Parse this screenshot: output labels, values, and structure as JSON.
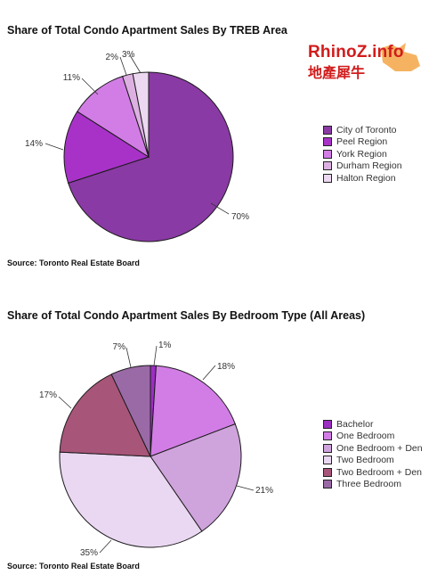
{
  "chart_data": [
    {
      "type": "pie",
      "title": "Share of Total Condo Apartment Sales By TREB Area",
      "categories": [
        "City of Toronto",
        "Peel Region",
        "York Region",
        "Durham Region",
        "Halton Region"
      ],
      "values": [
        70,
        14,
        11,
        2,
        3
      ],
      "data_labels": [
        "70%",
        "14%",
        "11%",
        "2%",
        "3%"
      ],
      "colors": [
        "#8a3aa4",
        "#a832c8",
        "#d27de6",
        "#ddb0e2",
        "#ecd8f0"
      ],
      "legend_position": "right",
      "source": "Source: Toronto Real Estate Board"
    },
    {
      "type": "pie",
      "title": "Share of Total Condo Apartment Sales By Bedroom Type (All Areas)",
      "categories": [
        "Bachelor",
        "One Bedroom",
        "One Bedroom + Den",
        "Two Bedroom",
        "Two Bedroom + Den",
        "Three Bedroom"
      ],
      "values": [
        1,
        18,
        21,
        35,
        17,
        7
      ],
      "data_labels": [
        "1%",
        "18%",
        "21%",
        "35%",
        "17%",
        "7%"
      ],
      "colors": [
        "#9c2ec2",
        "#d27de6",
        "#cfa3dc",
        "#ead8f2",
        "#a8557a",
        "#9a6aa6"
      ],
      "legend_position": "right",
      "source": "Source: Toronto Real Estate Board"
    }
  ],
  "watermark": {
    "latin": "RhinoZ.info",
    "chinese": "地產犀牛"
  }
}
